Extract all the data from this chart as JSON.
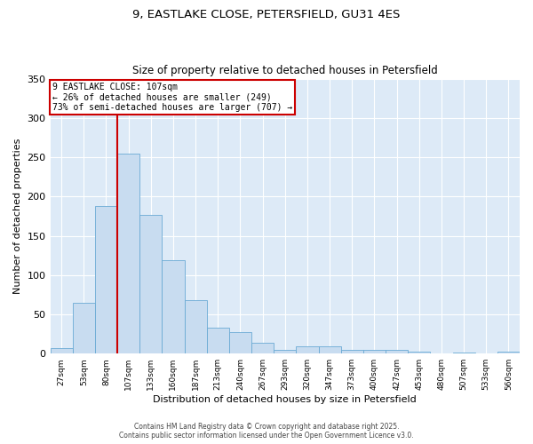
{
  "title_line1": "9, EASTLAKE CLOSE, PETERSFIELD, GU31 4ES",
  "title_line2": "Size of property relative to detached houses in Petersfield",
  "xlabel": "Distribution of detached houses by size in Petersfield",
  "ylabel": "Number of detached properties",
  "categories": [
    "27sqm",
    "53sqm",
    "80sqm",
    "107sqm",
    "133sqm",
    "160sqm",
    "187sqm",
    "213sqm",
    "240sqm",
    "267sqm",
    "293sqm",
    "320sqm",
    "347sqm",
    "373sqm",
    "400sqm",
    "427sqm",
    "453sqm",
    "480sqm",
    "507sqm",
    "533sqm",
    "560sqm"
  ],
  "values": [
    7,
    65,
    188,
    254,
    176,
    119,
    68,
    33,
    27,
    14,
    5,
    9,
    9,
    5,
    5,
    5,
    2,
    0,
    1,
    0,
    2
  ],
  "bar_color": "#c8dcf0",
  "bar_edge_color": "#6aaad4",
  "vline_index": 3,
  "vline_color": "#cc0000",
  "annotation_text": "9 EASTLAKE CLOSE: 107sqm\n← 26% of detached houses are smaller (249)\n73% of semi-detached houses are larger (707) →",
  "annotation_box_color": "#cc0000",
  "fig_background_color": "#ffffff",
  "plot_background_color": "#ddeaf7",
  "ylim": [
    0,
    350
  ],
  "yticks": [
    0,
    50,
    100,
    150,
    200,
    250,
    300,
    350
  ],
  "footer_line1": "Contains HM Land Registry data © Crown copyright and database right 2025.",
  "footer_line2": "Contains public sector information licensed under the Open Government Licence v3.0."
}
